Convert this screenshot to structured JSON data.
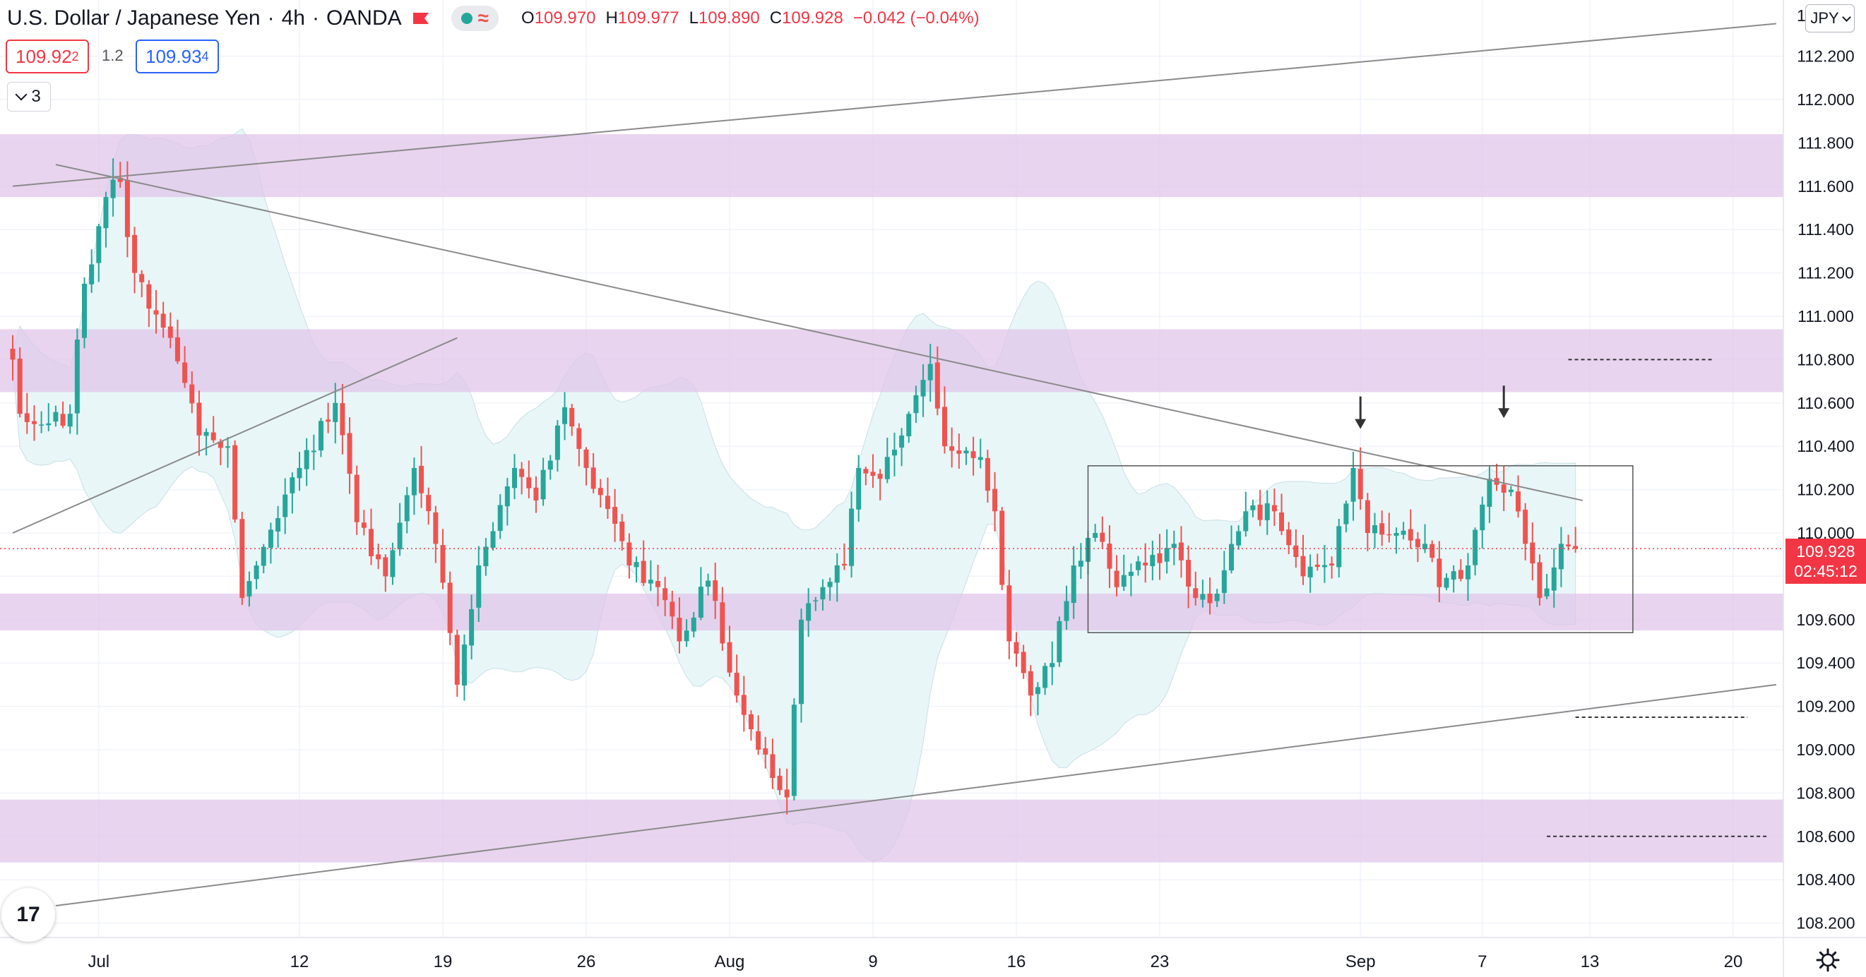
{
  "header": {
    "symbol": "U.S. Dollar / Japanese Yen",
    "interval": "4h",
    "broker": "OANDA",
    "separator": "·",
    "ohlc": {
      "open_label": "O",
      "open": "109.970",
      "high_label": "H",
      "high": "109.977",
      "low_label": "L",
      "low": "109.890",
      "close_label": "C",
      "close": "109.928",
      "change": "−0.042 (−0.04%)"
    },
    "flag_icon": "flag-icon",
    "indicator_icons": [
      "dot-icon",
      "wave-icon"
    ],
    "wave_glyph": "≈"
  },
  "trading": {
    "sell_price": "109.92",
    "sell_sup": "2",
    "spread": "1.2",
    "buy_price": "109.93",
    "buy_sup": "4"
  },
  "collapse_count": "3",
  "currency": "JPY",
  "top_partial_label": "1",
  "logo_text": "17",
  "last_price": {
    "price": "109.928",
    "countdown": "02:45:12"
  },
  "colors": {
    "up": "#26a69a",
    "down": "#ef5350",
    "zone": "#e1c4e9",
    "band": "#e8f6f8",
    "trend": "#8a8a8a",
    "last_price": "#f23645"
  },
  "chart_data": {
    "type": "candlestick",
    "timeframe": "4h",
    "y_axis": {
      "min": 108.1,
      "max": 112.6,
      "ticks": [
        "108.200",
        "108.400",
        "108.600",
        "108.800",
        "109.000",
        "109.200",
        "109.400",
        "109.600",
        "109.800",
        "110.000",
        "110.200",
        "110.400",
        "110.600",
        "110.800",
        "111.000",
        "111.200",
        "111.400",
        "111.600",
        "111.800",
        "112.000",
        "112.200"
      ]
    },
    "x_axis": {
      "labels": [
        {
          "label": "Jul",
          "date": "2021-07-01",
          "bar": 12
        },
        {
          "label": "12",
          "date": "2021-07-12",
          "bar": 40
        },
        {
          "label": "19",
          "date": "2021-07-19",
          "bar": 60
        },
        {
          "label": "26",
          "date": "2021-07-26",
          "bar": 80
        },
        {
          "label": "Aug",
          "date": "2021-08-02",
          "bar": 100
        },
        {
          "label": "9",
          "date": "2021-08-09",
          "bar": 120
        },
        {
          "label": "16",
          "date": "2021-08-16",
          "bar": 140
        },
        {
          "label": "23",
          "date": "2021-08-23",
          "bar": 160
        },
        {
          "label": "Sep",
          "date": "2021-09-01",
          "bar": 188
        },
        {
          "label": "7",
          "date": "2021-09-07",
          "bar": 205
        },
        {
          "label": "13",
          "date": "2021-09-13",
          "bar": 220
        },
        {
          "label": "20",
          "date": "2021-09-20",
          "bar": 240
        }
      ],
      "bars_in_view": 246
    },
    "anchors": [
      {
        "bar": 0,
        "price": 110.8
      },
      {
        "bar": 1,
        "price": 110.55
      },
      {
        "bar": 4,
        "price": 110.5
      },
      {
        "bar": 8,
        "price": 110.55
      },
      {
        "bar": 10,
        "price": 111.15
      },
      {
        "bar": 13,
        "price": 111.55
      },
      {
        "bar": 15,
        "price": 111.62
      },
      {
        "bar": 17,
        "price": 111.2
      },
      {
        "bar": 22,
        "price": 110.9
      },
      {
        "bar": 26,
        "price": 110.45
      },
      {
        "bar": 30,
        "price": 110.4
      },
      {
        "bar": 32,
        "price": 109.7
      },
      {
        "bar": 34,
        "price": 109.85
      },
      {
        "bar": 40,
        "price": 110.3
      },
      {
        "bar": 45,
        "price": 110.6
      },
      {
        "bar": 48,
        "price": 110.05
      },
      {
        "bar": 52,
        "price": 109.8
      },
      {
        "bar": 56,
        "price": 110.3
      },
      {
        "bar": 59,
        "price": 109.95
      },
      {
        "bar": 62,
        "price": 109.3
      },
      {
        "bar": 65,
        "price": 109.85
      },
      {
        "bar": 70,
        "price": 110.3
      },
      {
        "bar": 73,
        "price": 110.15
      },
      {
        "bar": 77,
        "price": 110.58
      },
      {
        "bar": 80,
        "price": 110.3
      },
      {
        "bar": 86,
        "price": 109.85
      },
      {
        "bar": 90,
        "price": 109.75
      },
      {
        "bar": 93,
        "price": 109.5
      },
      {
        "bar": 97,
        "price": 109.78
      },
      {
        "bar": 101,
        "price": 109.25
      },
      {
        "bar": 104,
        "price": 109.0
      },
      {
        "bar": 108,
        "price": 108.78
      },
      {
        "bar": 110,
        "price": 109.6
      },
      {
        "bar": 113,
        "price": 109.75
      },
      {
        "bar": 116,
        "price": 109.85
      },
      {
        "bar": 118,
        "price": 110.3
      },
      {
        "bar": 121,
        "price": 110.25
      },
      {
        "bar": 124,
        "price": 110.45
      },
      {
        "bar": 128,
        "price": 110.78
      },
      {
        "bar": 130,
        "price": 110.4
      },
      {
        "bar": 135,
        "price": 110.35
      },
      {
        "bar": 137,
        "price": 110.1
      },
      {
        "bar": 139,
        "price": 109.5
      },
      {
        "bar": 142,
        "price": 109.25
      },
      {
        "bar": 145,
        "price": 109.4
      },
      {
        "bar": 148,
        "price": 109.85
      },
      {
        "bar": 151,
        "price": 110.0
      },
      {
        "bar": 154,
        "price": 109.75
      },
      {
        "bar": 158,
        "price": 109.85
      },
      {
        "bar": 162,
        "price": 109.95
      },
      {
        "bar": 165,
        "price": 109.7
      },
      {
        "bar": 168,
        "price": 109.72
      },
      {
        "bar": 172,
        "price": 110.1
      },
      {
        "bar": 176,
        "price": 110.1
      },
      {
        "bar": 180,
        "price": 109.8
      },
      {
        "bar": 184,
        "price": 109.85
      },
      {
        "bar": 187,
        "price": 110.3
      },
      {
        "bar": 189,
        "price": 110.0
      },
      {
        "bar": 193,
        "price": 110.0
      },
      {
        "bar": 197,
        "price": 109.95
      },
      {
        "bar": 199,
        "price": 109.75
      },
      {
        "bar": 203,
        "price": 109.85
      },
      {
        "bar": 206,
        "price": 110.25
      },
      {
        "bar": 209,
        "price": 110.2
      },
      {
        "bar": 211,
        "price": 109.95
      },
      {
        "bar": 213,
        "price": 109.7
      },
      {
        "bar": 216,
        "price": 109.95
      },
      {
        "bar": 218,
        "price": 109.928
      }
    ],
    "zones": [
      {
        "from": 111.55,
        "to": 111.84
      },
      {
        "from": 110.65,
        "to": 110.94
      },
      {
        "from": 109.55,
        "to": 109.72
      },
      {
        "from": 108.48,
        "to": 108.77
      }
    ],
    "trendlines": [
      {
        "from": {
          "bar": 0,
          "price": 111.6
        },
        "to": {
          "bar": 246,
          "price": 112.35
        }
      },
      {
        "from": {
          "bar": 6,
          "price": 111.7
        },
        "to": {
          "bar": 219,
          "price": 110.15
        }
      },
      {
        "from": {
          "bar": 0,
          "price": 110.0
        },
        "to": {
          "bar": 62,
          "price": 110.9
        }
      },
      {
        "from": {
          "bar": 6,
          "price": 108.28
        },
        "to": {
          "bar": 246,
          "price": 109.3
        }
      }
    ],
    "range_box": {
      "from_bar": 150,
      "to_bar": 226,
      "low": 109.54,
      "high": 110.31
    },
    "dashed_levels": [
      {
        "price": 110.8,
        "from_bar": 217,
        "to_bar": 237
      },
      {
        "price": 109.15,
        "from_bar": 218,
        "to_bar": 242
      },
      {
        "price": 108.6,
        "from_bar": 214,
        "to_bar": 245
      }
    ],
    "arrows": [
      {
        "bar": 188,
        "price": 110.48
      },
      {
        "bar": 208,
        "price": 110.53
      }
    ],
    "last_price": 109.928
  }
}
